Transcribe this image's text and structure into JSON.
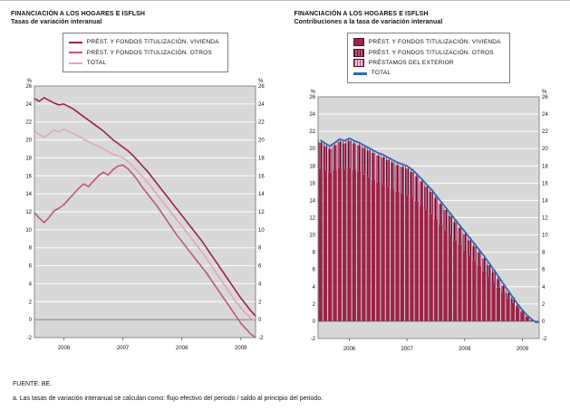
{
  "page": {
    "fuente": "FUENTE: BE.",
    "footnote": "a. Las tasas de variación interanual se calculan como: flujo efectivo del periodo / saldo al principio del periodo."
  },
  "chart_data": [
    {
      "type": "line",
      "title": "FINANCIACIÓN A LOS HOGARES E ISFLSH",
      "subtitle": "Tasas de variación interanual",
      "unit": "%",
      "ylim": [
        -2,
        26
      ],
      "ytick_step": 2,
      "grid": true,
      "legend_position": "top",
      "x_ticks": [
        "2006",
        "2007",
        "2008",
        "2009"
      ],
      "x_tick_idx": [
        6,
        18,
        30,
        42
      ],
      "series": [
        {
          "name": "PRÉST. Y FONDOS TITULIZACIÓN. VIVIENDA",
          "color": "#9c2347",
          "values": [
            24.6,
            24.3,
            24.7,
            24.4,
            24.1,
            23.9,
            24.0,
            23.7,
            23.4,
            23.0,
            22.6,
            22.2,
            21.8,
            21.4,
            21.0,
            20.5,
            20.0,
            19.6,
            19.2,
            18.8,
            18.3,
            17.7,
            17.1,
            16.5,
            15.8,
            15.1,
            14.4,
            13.7,
            13.0,
            12.3,
            11.6,
            10.9,
            10.2,
            9.5,
            8.8,
            8.0,
            7.2,
            6.4,
            5.6,
            4.8,
            4.0,
            3.2,
            2.4,
            1.7,
            1.0,
            0.4
          ]
        },
        {
          "name": "PRÉST. Y FONDOS TITULIZACIÓN. OTROS",
          "color": "#c2567c",
          "values": [
            11.9,
            11.3,
            10.8,
            11.4,
            12.1,
            12.4,
            12.8,
            13.4,
            14.0,
            14.6,
            15.1,
            14.8,
            15.4,
            16.0,
            16.4,
            16.1,
            16.7,
            17.1,
            17.2,
            16.8,
            16.2,
            15.5,
            14.7,
            14.0,
            13.3,
            12.6,
            11.8,
            11.0,
            10.2,
            9.4,
            8.7,
            8.0,
            7.3,
            6.6,
            5.9,
            5.2,
            4.4,
            3.6,
            2.8,
            2.0,
            1.2,
            0.4,
            -0.4,
            -1.0,
            -1.6,
            -2.1
          ]
        },
        {
          "name": "TOTAL",
          "color": "#e2a6ba",
          "values": [
            21.0,
            20.6,
            20.3,
            20.7,
            21.1,
            20.9,
            21.2,
            20.9,
            20.7,
            20.4,
            20.1,
            19.8,
            19.5,
            19.3,
            19.0,
            18.7,
            18.4,
            18.2,
            18.0,
            17.6,
            17.1,
            16.5,
            15.9,
            15.3,
            14.6,
            13.9,
            13.2,
            12.5,
            11.8,
            11.1,
            10.4,
            9.7,
            9.0,
            8.3,
            7.6,
            6.8,
            6.0,
            5.2,
            4.4,
            3.6,
            2.8,
            2.0,
            1.3,
            0.7,
            0.2,
            -0.2
          ]
        }
      ]
    },
    {
      "type": "bar",
      "stacked": true,
      "title": "FINANCIACIÓN A LOS HOGARES E ISFLSH",
      "subtitle": "Contribuciones a la tasa de variación interanual",
      "unit": "%",
      "ylim": [
        -2,
        26
      ],
      "ytick_step": 2,
      "grid": true,
      "legend_position": "top",
      "x_ticks": [
        "2006",
        "2007",
        "2008",
        "2009"
      ],
      "x_tick_idx": [
        6,
        18,
        30,
        42
      ],
      "series": [
        {
          "name": "PRÉST. Y FONDOS TITULIZACIÓN. VIVIENDA",
          "style": "solid",
          "color": "#9c2347",
          "values": [
            17.7,
            17.4,
            17.2,
            17.5,
            17.8,
            17.6,
            17.8,
            17.5,
            17.3,
            17.0,
            16.7,
            16.4,
            16.1,
            15.9,
            15.6,
            15.3,
            15.0,
            14.8,
            14.6,
            14.3,
            13.9,
            13.4,
            12.9,
            12.4,
            11.8,
            11.2,
            10.6,
            10.0,
            9.4,
            8.8,
            8.2,
            7.6,
            7.0,
            6.4,
            5.8,
            5.2,
            4.5,
            3.9,
            3.3,
            2.7,
            2.1,
            1.5,
            1.0,
            0.5,
            0.1,
            -0.1
          ]
        },
        {
          "name": "PRÉST. Y FONDOS TITULIZACIÓN. OTROS",
          "style": "hatch-dark",
          "color": "#9c2347",
          "values": [
            3.0,
            2.9,
            2.8,
            2.9,
            3.0,
            3.0,
            3.1,
            3.1,
            3.1,
            3.1,
            3.1,
            3.1,
            3.1,
            3.1,
            3.1,
            3.1,
            3.1,
            3.1,
            3.1,
            3.0,
            2.9,
            2.8,
            2.7,
            2.6,
            2.5,
            2.4,
            2.3,
            2.2,
            2.1,
            2.0,
            1.9,
            1.8,
            1.7,
            1.6,
            1.5,
            1.3,
            1.2,
            1.0,
            0.8,
            0.6,
            0.5,
            0.3,
            0.2,
            0.1,
            0.0,
            -0.1
          ]
        },
        {
          "name": "PRÉSTAMOS DEL EXTERIOR",
          "style": "hatch-light",
          "color": "#a84a72",
          "values": [
            0.3,
            0.3,
            0.3,
            0.3,
            0.3,
            0.3,
            0.3,
            0.3,
            0.3,
            0.3,
            0.3,
            0.3,
            0.3,
            0.3,
            0.3,
            0.3,
            0.3,
            0.3,
            0.3,
            0.3,
            0.3,
            0.3,
            0.3,
            0.3,
            0.3,
            0.3,
            0.3,
            0.3,
            0.3,
            0.3,
            0.3,
            0.3,
            0.3,
            0.3,
            0.3,
            0.3,
            0.3,
            0.3,
            0.3,
            0.3,
            0.2,
            0.2,
            0.1,
            0.1,
            0.1,
            0.0
          ]
        }
      ],
      "line_series": {
        "name": "TOTAL",
        "color": "#2a6db5",
        "values": [
          21.0,
          20.6,
          20.3,
          20.7,
          21.1,
          20.9,
          21.2,
          20.9,
          20.7,
          20.4,
          20.1,
          19.8,
          19.5,
          19.3,
          19.0,
          18.7,
          18.4,
          18.2,
          18.0,
          17.6,
          17.1,
          16.5,
          15.9,
          15.3,
          14.6,
          13.9,
          13.2,
          12.5,
          11.8,
          11.1,
          10.4,
          9.7,
          9.0,
          8.3,
          7.6,
          6.8,
          6.0,
          5.2,
          4.4,
          3.6,
          2.8,
          2.0,
          1.3,
          0.7,
          0.2,
          -0.2
        ]
      }
    }
  ]
}
